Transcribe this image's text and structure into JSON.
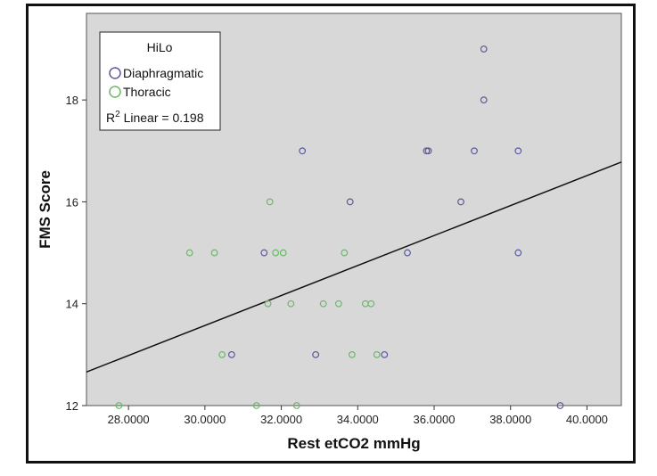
{
  "chart_data": {
    "type": "scatter",
    "xlabel": "Rest etCO2 mmHg",
    "ylabel": "FMS Score",
    "xlim": [
      26.9,
      40.9
    ],
    "ylim": [
      12,
      19.7
    ],
    "x_ticks": [
      28,
      30,
      32,
      34,
      36,
      38,
      40
    ],
    "x_tick_labels": [
      "28.0000",
      "30.0000",
      "32.0000",
      "34.0000",
      "36.0000",
      "38.0000",
      "40.0000"
    ],
    "y_ticks": [
      12,
      14,
      16,
      18
    ],
    "y_tick_labels": [
      "12",
      "14",
      "16",
      "18"
    ],
    "legend": {
      "title": "HiLo",
      "entries": [
        "Diaphragmatic",
        "Thoracic"
      ],
      "fit_label": "R",
      "fit_sup": "2",
      "fit_label_rest": " Linear = 0.198"
    },
    "fit_line": {
      "x": [
        26.9,
        40.9
      ],
      "y": [
        12.66,
        16.78
      ]
    },
    "series": [
      {
        "name": "Diaphragmatic",
        "color": "#5a5a9a",
        "x": [
          37.3,
          37.3,
          32.55,
          35.8,
          35.85,
          37.05,
          38.2,
          33.8,
          36.7,
          31.55,
          35.3,
          38.2,
          30.7,
          32.9,
          34.7,
          39.3
        ],
        "y": [
          19,
          18,
          17,
          17,
          17,
          17,
          17,
          16,
          16,
          15,
          15,
          15,
          13,
          13,
          13,
          12
        ]
      },
      {
        "name": "Thoracic",
        "color": "#6ab86a",
        "x": [
          31.7,
          29.6,
          30.25,
          31.85,
          32.05,
          33.65,
          31.65,
          32.25,
          33.1,
          33.5,
          34.2,
          34.35,
          30.45,
          33.85,
          34.5,
          27.75,
          31.35,
          32.4
        ],
        "y": [
          16,
          15,
          15,
          15,
          15,
          15,
          14,
          14,
          14,
          14,
          14,
          14,
          13,
          13,
          13,
          12,
          12,
          12
        ]
      }
    ]
  }
}
